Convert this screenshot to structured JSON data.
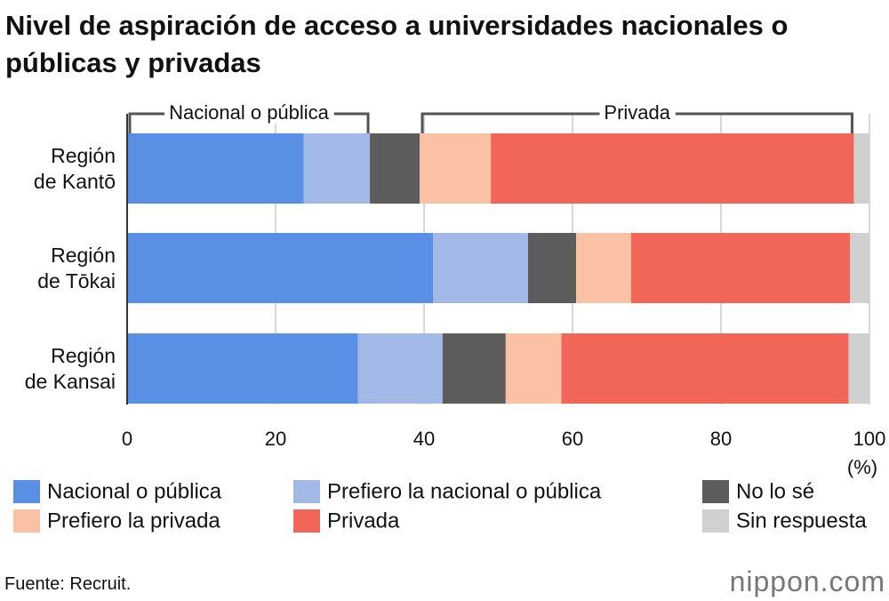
{
  "chart_data": {
    "type": "stacked-barh",
    "title": "Nivel de aspiración de acceso a universidades nacionales o públicas y privadas",
    "categories": [
      "Región\nde Kantō",
      "Región\nde Tōkai",
      "Región\nde Kansai"
    ],
    "series": [
      {
        "name": "Nacional o pública",
        "color": "#5a8fe6",
        "values": [
          23.8,
          41.2,
          31.1
        ]
      },
      {
        "name": "Prefiero la nacional o pública",
        "color": "#a2b8e6",
        "values": [
          8.9,
          12.8,
          11.4
        ]
      },
      {
        "name": "No lo sé",
        "color": "#5c5c5c",
        "values": [
          6.7,
          6.5,
          8.5
        ]
      },
      {
        "name": "Prefiero la privada",
        "color": "#fbc1a5",
        "values": [
          9.6,
          7.4,
          7.5
        ]
      },
      {
        "name": "Privada",
        "color": "#f2665a",
        "values": [
          48.9,
          29.5,
          38.7
        ]
      },
      {
        "name": "Sin respuesta",
        "color": "#d0d0d0",
        "values": [
          2.1,
          2.6,
          2.8
        ]
      }
    ],
    "xlim": [
      0,
      100
    ],
    "xticks": [
      0,
      20,
      40,
      60,
      80,
      100
    ],
    "x_unit": "(%)",
    "grid": true,
    "annotations": [
      "Nacional o pública",
      "Privada"
    ],
    "source": "Fuente: Recruit.",
    "watermark": "nippon.com"
  }
}
